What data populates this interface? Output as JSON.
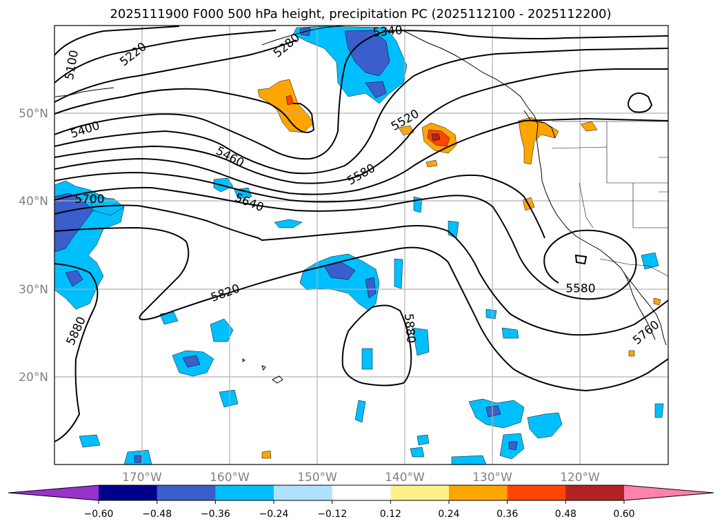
{
  "title": "2025111900 F000 500 hPa height, precipitation PC (2025112100 - 2025112200)",
  "map": {
    "lon_range": [
      -180,
      -110
    ],
    "lat_range": [
      10,
      60
    ],
    "lon_ticks": [
      {
        "value": -170,
        "label": "170°W"
      },
      {
        "value": -160,
        "label": "160°W"
      },
      {
        "value": -150,
        "label": "150°W"
      },
      {
        "value": -140,
        "label": "140°W"
      },
      {
        "value": -130,
        "label": "130°W"
      },
      {
        "value": -120,
        "label": "120°W"
      }
    ],
    "lat_ticks": [
      {
        "value": 50,
        "label": "50°N"
      },
      {
        "value": 40,
        "label": "40°N"
      },
      {
        "value": 30,
        "label": "30°N"
      },
      {
        "value": 20,
        "label": "20°N"
      }
    ],
    "contour_labels": [
      {
        "text": "5100",
        "lon": -178.0,
        "lat": 55.5,
        "rot": -80
      },
      {
        "text": "5220",
        "lon": -171.0,
        "lat": 56.7,
        "rot": -38
      },
      {
        "text": "5280",
        "lon": -153.5,
        "lat": 57.7,
        "rot": -40
      },
      {
        "text": "5340",
        "lon": -142.0,
        "lat": 59.3,
        "rot": -5
      },
      {
        "text": "5400",
        "lon": -176.5,
        "lat": 48.1,
        "rot": -18
      },
      {
        "text": "5460",
        "lon": -160.0,
        "lat": 45.0,
        "rot": 28
      },
      {
        "text": "5520",
        "lon": -140.0,
        "lat": 49.2,
        "rot": -30
      },
      {
        "text": "5580",
        "lon": -145.0,
        "lat": 43.0,
        "rot": -30
      },
      {
        "text": "5640",
        "lon": -157.8,
        "lat": 39.8,
        "rot": 22
      },
      {
        "text": "5700",
        "lon": -176.0,
        "lat": 40.2,
        "rot": 0
      },
      {
        "text": "5820",
        "lon": -160.5,
        "lat": 29.5,
        "rot": -20
      },
      {
        "text": "5880",
        "lon": -177.5,
        "lat": 25.2,
        "rot": -65
      },
      {
        "text": "5880",
        "lon": -139.5,
        "lat": 25.5,
        "rot": 85
      },
      {
        "text": "5580",
        "lon": -120.0,
        "lat": 30.0,
        "rot": 0
      },
      {
        "text": "5760",
        "lon": -112.5,
        "lat": 25.0,
        "rot": -40
      }
    ]
  },
  "colorbar": {
    "ticks": [
      "−0.60",
      "−0.48",
      "−0.36",
      "−0.24",
      "−0.12",
      "0.12",
      "0.24",
      "0.36",
      "0.48",
      "0.60"
    ],
    "colors": [
      "#9932cc",
      "#00008b",
      "#3a5fcd",
      "#00bfff",
      "#b0e2ff",
      "#ffffff",
      "#fff08a",
      "#ffa500",
      "#ff4500",
      "#b22222",
      "#ff82ab"
    ]
  }
}
